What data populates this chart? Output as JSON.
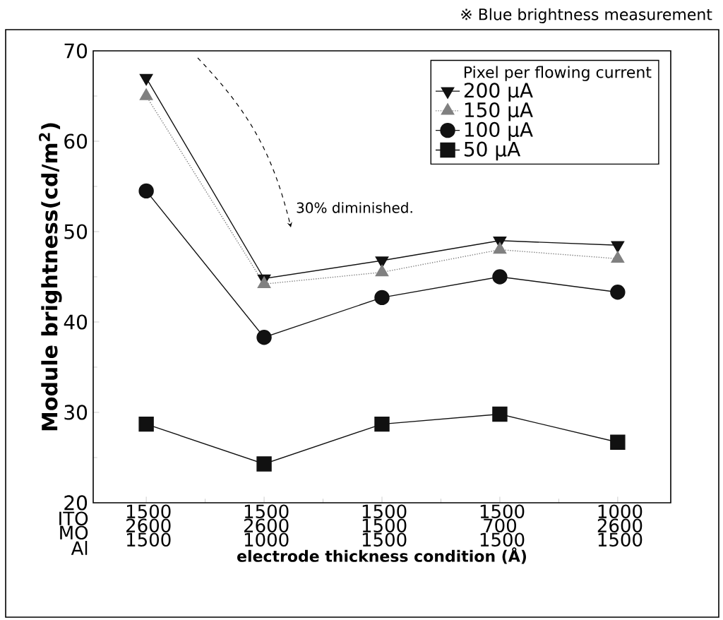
{
  "chart_data": {
    "type": "line",
    "ylabel": "Module brightness(cd/m$^{2}$)",
    "xlabel": "electrode thickness condition (Å)",
    "legend_title": "Pixel per flowing current",
    "categories": [
      "1500 2600 1500",
      "1500 2600 1000",
      "1500 1500 1500",
      "1500 700 1500",
      "1000 2600 1500"
    ],
    "series": [
      {
        "name": "200 μA",
        "color": "#111111",
        "marker": "triangle-down",
        "line_style": "solid",
        "values": [
          67,
          44.8,
          46.8,
          49,
          48.5
        ]
      },
      {
        "name": "150 μA",
        "color": "#808080",
        "marker": "triangle",
        "line_style": "dotted",
        "values": [
          65,
          44.2,
          45.5,
          48,
          47
        ]
      },
      {
        "name": "100 μA",
        "color": "#111111",
        "marker": "circle",
        "line_style": "solid",
        "values": [
          54.5,
          38.3,
          42.7,
          45,
          43.3
        ]
      },
      {
        "name": "50 μA",
        "color": "#111111",
        "marker": "square",
        "line_style": "solid",
        "values": [
          28.7,
          24.3,
          28.7,
          29.8,
          26.7
        ]
      }
    ],
    "ylim": [
      20,
      70
    ],
    "yticks": [
      20,
      30,
      40,
      50,
      60,
      70
    ],
    "grid": false,
    "legend": "top right",
    "annotations": [
      "※ Blue brightness measurement",
      "ITO MO Al",
      "30% diminished."
    ]
  }
}
